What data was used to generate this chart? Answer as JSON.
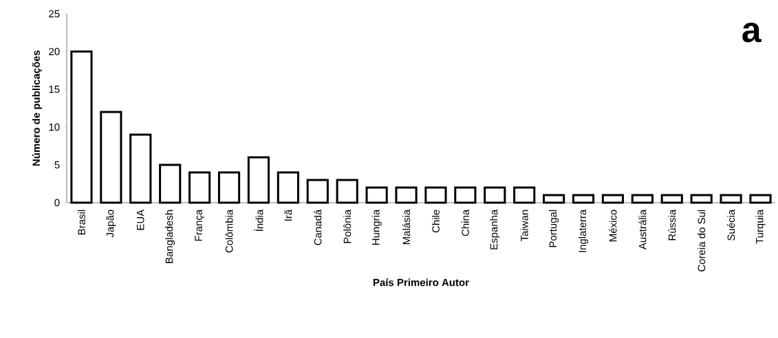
{
  "chart_data": {
    "type": "bar",
    "xlabel": "País Primeiro Autor",
    "ylabel": "Número de publicações",
    "annotations": [
      "a"
    ],
    "categories": [
      "Brasil",
      "Japão",
      "EUA",
      "Bangladesh",
      "França",
      "Colômbia",
      "Índia",
      "Irã",
      "Canadá",
      "Polônia",
      "Hungria",
      "Malásia",
      "Chile",
      "China",
      "Espanha",
      "Taiwan",
      "Portugal",
      "Inglaterra",
      "México",
      "Austrália",
      "Rússia",
      "Coreia do Sul",
      "Suécia",
      "Turquia"
    ],
    "values": [
      20,
      12,
      9,
      5,
      4,
      4,
      6,
      4,
      3,
      3,
      2,
      2,
      2,
      2,
      2,
      2,
      1,
      1,
      1,
      1,
      1,
      1,
      1,
      1
    ],
    "color": "#ffffff",
    "ylim": [
      0,
      25
    ],
    "yticks": [
      0,
      5,
      10,
      15,
      20,
      25
    ]
  }
}
